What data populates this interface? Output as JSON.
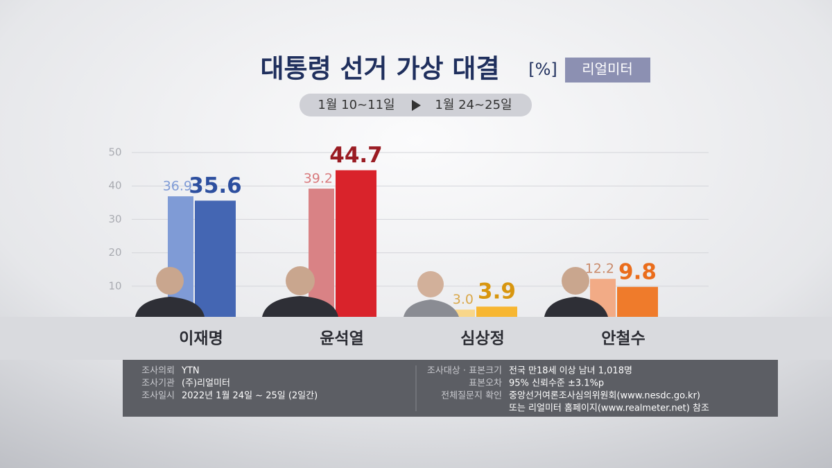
{
  "chart_data": {
    "type": "bar",
    "title": "대통령 선거 가상 대결",
    "unit": "[%]",
    "source_badge": "리얼미터",
    "categories": [
      "이재명",
      "윤석열",
      "심상정",
      "안철수"
    ],
    "series": [
      {
        "name": "1월 10~11일",
        "values": [
          36.9,
          39.2,
          3.0,
          12.2
        ],
        "value_labels": [
          "36.9",
          "39.2",
          "3.0",
          "12.2"
        ],
        "colors": [
          "#7f9bd6",
          "#d98285",
          "#f8d68a",
          "#f2ab86"
        ],
        "label_colors": [
          "#7f9bd6",
          "#d97a7d",
          "#d9a84a",
          "#c98a6a"
        ]
      },
      {
        "name": "1월 24~25일",
        "values": [
          35.6,
          44.7,
          3.9,
          9.8
        ],
        "value_labels": [
          "35.6",
          "44.7",
          "3.9",
          "9.8"
        ],
        "colors": [
          "#4466b3",
          "#d9232b",
          "#f7b631",
          "#ef7b2b"
        ],
        "label_colors": [
          "#2d4f9f",
          "#9a1c23",
          "#d8960f",
          "#ea6d1c"
        ]
      }
    ],
    "ylim": [
      0,
      50
    ],
    "yticks": [
      10,
      20,
      30,
      40,
      50
    ],
    "grid": true
  },
  "survey_info": {
    "left": [
      [
        "조사의뢰",
        "YTN"
      ],
      [
        "조사기관",
        "(주)리얼미터"
      ],
      [
        "조사일시",
        "2022년 1월 24일 ~ 25일 (2일간)"
      ]
    ],
    "right": [
      [
        "조사대상 · 표본크기",
        "전국 만18세 이상 남녀 1,018명"
      ],
      [
        "표본오차",
        "95% 신뢰수준 ±3.1%p"
      ],
      [
        "전체질문지 확인",
        "중앙선거여론조사심의위원회(www.nesdc.go.kr)"
      ]
    ],
    "note": "또는 리얼미터 홈페이지(www.realmeter.net) 참조"
  }
}
